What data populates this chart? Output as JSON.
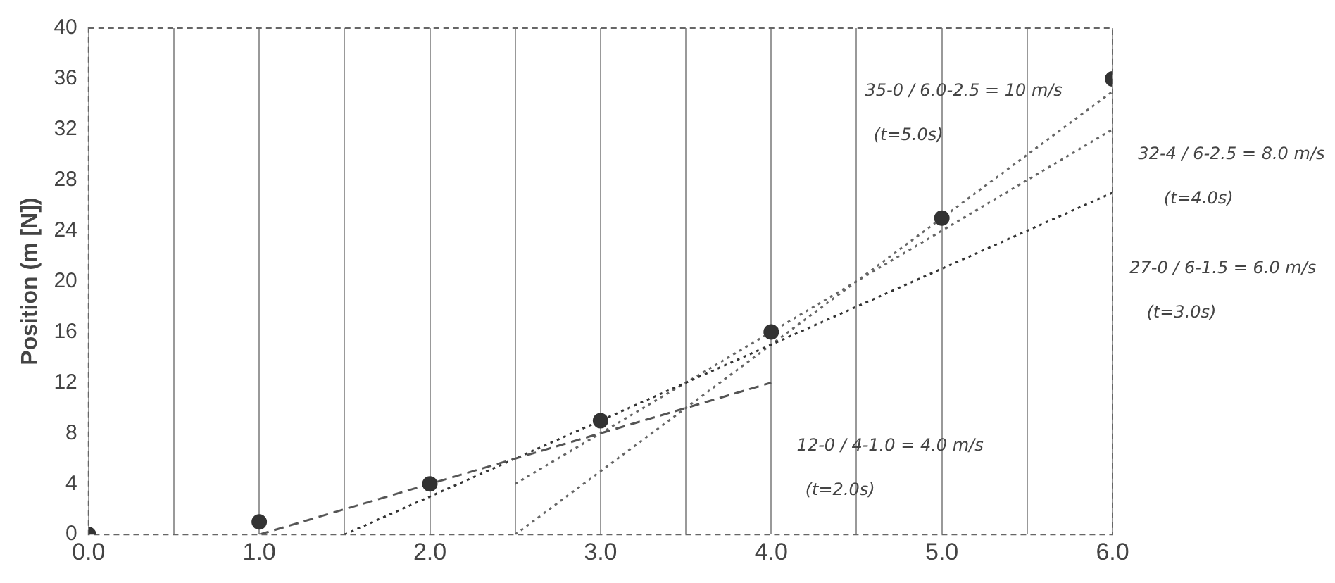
{
  "chart_data": {
    "type": "scatter",
    "ylabel": "Position (m [N])",
    "xlim": [
      0,
      6
    ],
    "ylim": [
      0,
      40
    ],
    "xticks": [
      {
        "value": 0,
        "label": "0.0"
      },
      {
        "value": 0.5,
        "label": null
      },
      {
        "value": 1,
        "label": "1.0"
      },
      {
        "value": 1.5,
        "label": null
      },
      {
        "value": 2,
        "label": "2.0"
      },
      {
        "value": 2.5,
        "label": null
      },
      {
        "value": 3,
        "label": "3.0"
      },
      {
        "value": 3.5,
        "label": null
      },
      {
        "value": 4,
        "label": "4.0"
      },
      {
        "value": 4.5,
        "label": null
      },
      {
        "value": 5,
        "label": "5.0"
      },
      {
        "value": 5.5,
        "label": null
      },
      {
        "value": 6,
        "label": "6.0"
      }
    ],
    "yticks": [
      0,
      4,
      8,
      12,
      16,
      20,
      24,
      28,
      32,
      36,
      40
    ],
    "grid": "x",
    "series": [
      {
        "color": "#333333",
        "marker": "circle",
        "x": [
          0,
          1,
          2,
          3,
          4,
          5,
          6
        ],
        "values": [
          0,
          1,
          4,
          9,
          16,
          25,
          36
        ]
      },
      {
        "type": "line",
        "color": "#555555",
        "marker": "none",
        "line_style": "dashed",
        "x": [
          1,
          4
        ],
        "values": [
          0,
          12
        ]
      },
      {
        "type": "line",
        "color": "#333333",
        "marker": "none",
        "line_style": "dotted",
        "x": [
          1.5,
          6
        ],
        "values": [
          0,
          27
        ]
      },
      {
        "type": "line",
        "color": "#666666",
        "marker": "none",
        "line_style": "dotted",
        "x": [
          2.5,
          6
        ],
        "values": [
          4,
          32
        ]
      },
      {
        "type": "line",
        "color": "#666666",
        "marker": "none",
        "line_style": "dotted",
        "x": [
          2.5,
          6
        ],
        "values": [
          0,
          35
        ]
      }
    ],
    "annotations": [
      "35-0 / 6.0-2.5 = 10 m/s",
      "(t=5.0s)",
      "32-4 / 6-2.5 = 8.0 m/s",
      "(t=4.0s)",
      "27-0 / 6-1.5 = 6.0 m/s",
      "(t=3.0s)",
      "12-0 / 4-1.0 = 4.0 m/s",
      "(t=2.0s)"
    ]
  }
}
